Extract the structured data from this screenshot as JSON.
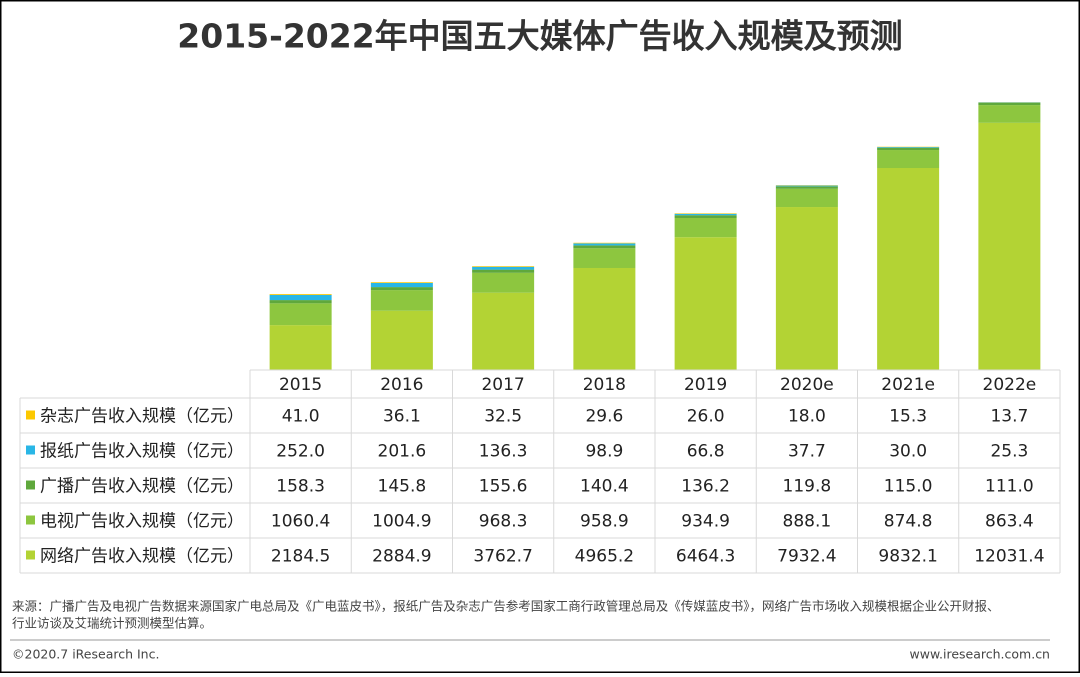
{
  "chart_data": {
    "type": "stacked-bar-table",
    "title": "2015-2022年中国五大媒体广告收入规模及预测",
    "categories": [
      "2015",
      "2016",
      "2017",
      "2018",
      "2019",
      "2020e",
      "2021e",
      "2022e"
    ],
    "series": [
      {
        "name": "杂志广告收入规模（亿元）",
        "color": "#fcc800",
        "values": [
          41.0,
          36.1,
          32.5,
          29.6,
          26.0,
          18.0,
          15.3,
          13.7
        ],
        "value_labels": [
          "41.0",
          "36.1",
          "32.5",
          "29.6",
          "26.0",
          "18.0",
          "15.3",
          "13.7"
        ]
      },
      {
        "name": "报纸广告收入规模（亿元）",
        "color": "#29b6e6",
        "values": [
          252.0,
          201.6,
          136.3,
          98.9,
          66.8,
          37.7,
          30.0,
          25.3
        ],
        "value_labels": [
          "252.0",
          "201.6",
          "136.3",
          "98.9",
          "66.8",
          "37.7",
          "30.0",
          "25.3"
        ]
      },
      {
        "name": "广播广告收入规模（亿元）",
        "color": "#5fa83c",
        "values": [
          158.3,
          145.8,
          155.6,
          140.4,
          136.2,
          119.8,
          115.0,
          111.0
        ],
        "value_labels": [
          "158.3",
          "145.8",
          "155.6",
          "140.4",
          "136.2",
          "119.8",
          "115.0",
          "111.0"
        ]
      },
      {
        "name": "电视广告收入规模（亿元）",
        "color": "#8dc63f",
        "values": [
          1060.4,
          1004.9,
          968.3,
          958.9,
          934.9,
          888.1,
          874.8,
          863.4
        ],
        "value_labels": [
          "1060.4",
          "1004.9",
          "968.3",
          "958.9",
          "934.9",
          "888.1",
          "874.8",
          "863.4"
        ]
      },
      {
        "name": "网络广告收入规模（亿元）",
        "color": "#b3d334",
        "values": [
          2184.5,
          2884.9,
          3762.7,
          4965.2,
          6464.3,
          7932.4,
          9832.1,
          12031.4
        ],
        "value_labels": [
          "2184.5",
          "2884.9",
          "3762.7",
          "4965.2",
          "6464.3",
          "7932.4",
          "9832.1",
          "12031.4"
        ]
      }
    ],
    "source": "来源：广播广告及电视广告数据来源国家广电总局及《广电蓝皮书》，报纸广告及杂志广告参考国家工商行政管理总局及《传媒蓝皮书》，网络广告市场收入规模根据企业公开财报、",
    "source_2": "行业访谈及艾瑞统计预测模型估算。",
    "copyright": "©2020.7 iResearch Inc.",
    "url": "www.iresearch.com.cn"
  }
}
